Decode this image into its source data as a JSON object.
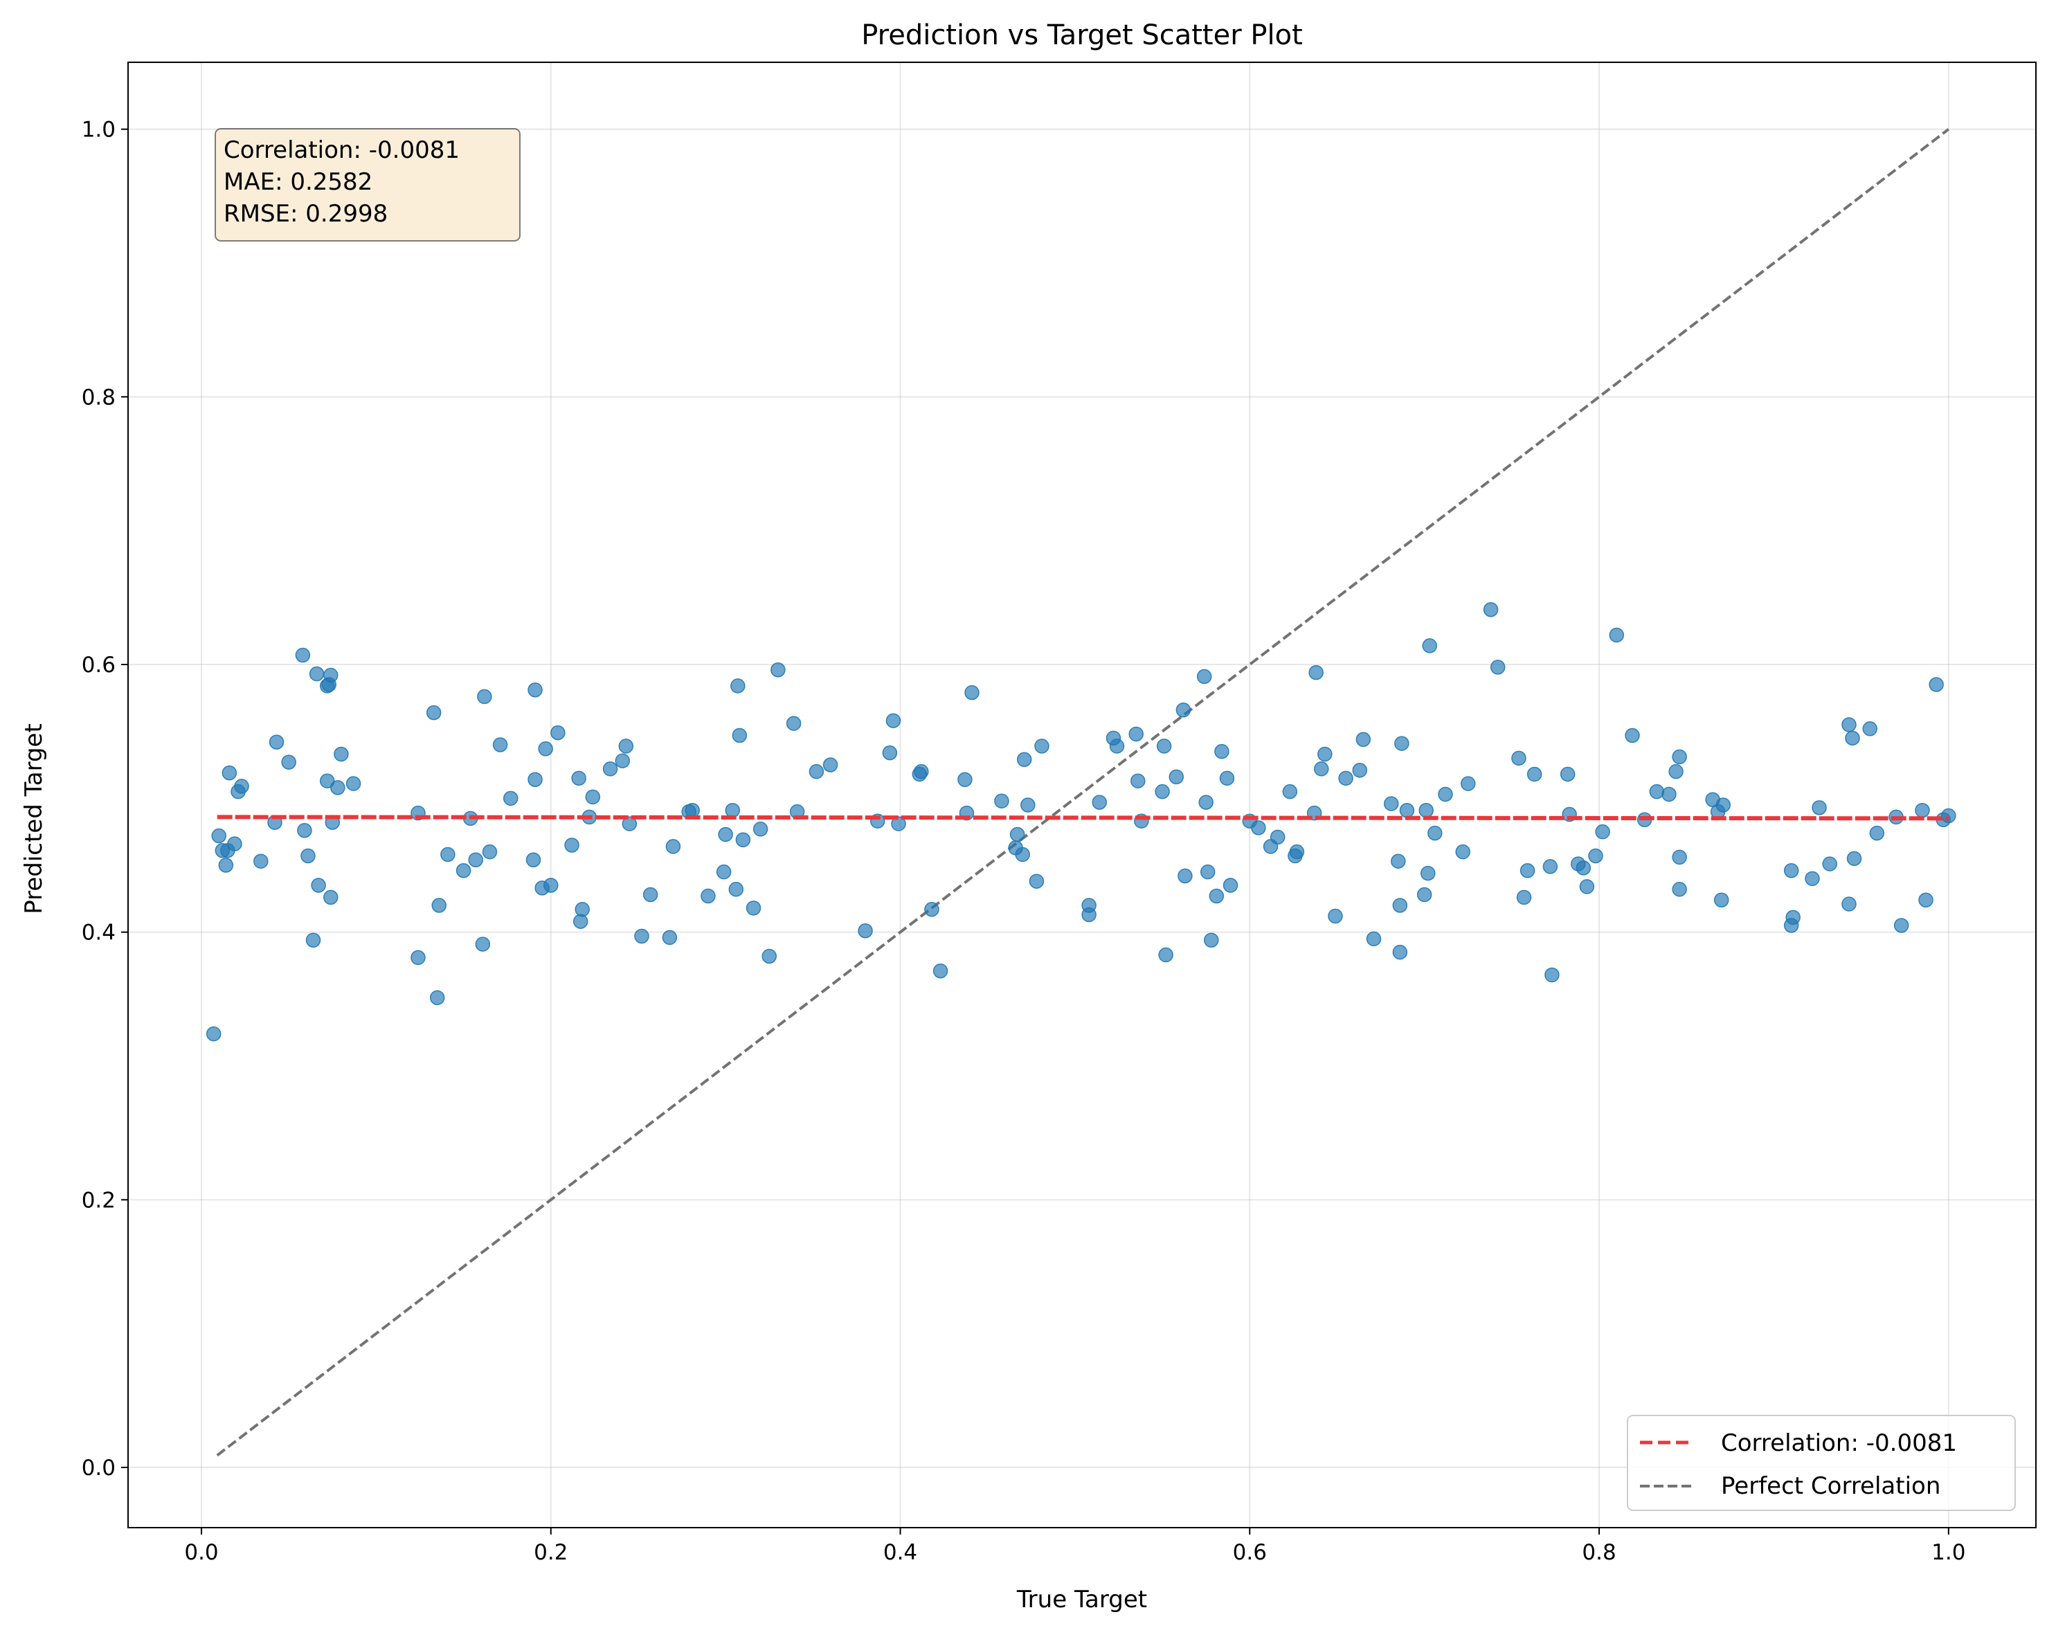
{
  "chart_data": {
    "type": "scatter",
    "title": "Prediction vs Target Scatter Plot",
    "xlabel": "True Target",
    "ylabel": "Predicted Target",
    "xlim": [
      -0.042,
      1.05
    ],
    "ylim": [
      -0.045,
      1.05
    ],
    "xticks": [
      0.0,
      0.2,
      0.4,
      0.6,
      0.8,
      1.0
    ],
    "xtick_labels": [
      "0.0",
      "0.2",
      "0.4",
      "0.6",
      "0.8",
      "1.0"
    ],
    "yticks": [
      0.0,
      0.2,
      0.4,
      0.6,
      0.8,
      1.0
    ],
    "ytick_labels": [
      "0.0",
      "0.2",
      "0.4",
      "0.6",
      "0.8",
      "1.0"
    ],
    "grid": true,
    "legend_position": "lower-right",
    "stats_box": {
      "lines": [
        "Correlation: -0.0081",
        "MAE: 0.2582",
        "RMSE: 0.2998"
      ],
      "position": "top-left"
    },
    "series": [
      {
        "kind": "scatter",
        "color": "#1f77b4",
        "points": [
          [
            0.007,
            0.324
          ],
          [
            0.01,
            0.472
          ],
          [
            0.012,
            0.461
          ],
          [
            0.014,
            0.45
          ],
          [
            0.015,
            0.461
          ],
          [
            0.016,
            0.519
          ],
          [
            0.019,
            0.466
          ],
          [
            0.021,
            0.505
          ],
          [
            0.023,
            0.509
          ],
          [
            0.034,
            0.453
          ],
          [
            0.042,
            0.482
          ],
          [
            0.043,
            0.542
          ],
          [
            0.05,
            0.527
          ],
          [
            0.058,
            0.607
          ],
          [
            0.059,
            0.476
          ],
          [
            0.061,
            0.457
          ],
          [
            0.064,
            0.394
          ],
          [
            0.066,
            0.593
          ],
          [
            0.067,
            0.435
          ],
          [
            0.072,
            0.584
          ],
          [
            0.072,
            0.513
          ],
          [
            0.073,
            0.585
          ],
          [
            0.074,
            0.592
          ],
          [
            0.074,
            0.426
          ],
          [
            0.075,
            0.482
          ],
          [
            0.078,
            0.508
          ],
          [
            0.08,
            0.533
          ],
          [
            0.087,
            0.511
          ],
          [
            0.124,
            0.489
          ],
          [
            0.124,
            0.381
          ],
          [
            0.133,
            0.564
          ],
          [
            0.135,
            0.351
          ],
          [
            0.136,
            0.42
          ],
          [
            0.141,
            0.458
          ],
          [
            0.15,
            0.446
          ],
          [
            0.154,
            0.485
          ],
          [
            0.157,
            0.454
          ],
          [
            0.161,
            0.391
          ],
          [
            0.162,
            0.576
          ],
          [
            0.165,
            0.46
          ],
          [
            0.171,
            0.54
          ],
          [
            0.177,
            0.5
          ],
          [
            0.19,
            0.454
          ],
          [
            0.191,
            0.514
          ],
          [
            0.191,
            0.581
          ],
          [
            0.195,
            0.433
          ],
          [
            0.197,
            0.537
          ],
          [
            0.2,
            0.435
          ],
          [
            0.204,
            0.549
          ],
          [
            0.212,
            0.465
          ],
          [
            0.216,
            0.515
          ],
          [
            0.217,
            0.408
          ],
          [
            0.218,
            0.417
          ],
          [
            0.222,
            0.486
          ],
          [
            0.224,
            0.501
          ],
          [
            0.234,
            0.522
          ],
          [
            0.241,
            0.528
          ],
          [
            0.243,
            0.539
          ],
          [
            0.245,
            0.481
          ],
          [
            0.252,
            0.397
          ],
          [
            0.257,
            0.428
          ],
          [
            0.268,
            0.396
          ],
          [
            0.27,
            0.464
          ],
          [
            0.279,
            0.49
          ],
          [
            0.281,
            0.491
          ],
          [
            0.29,
            0.427
          ],
          [
            0.299,
            0.445
          ],
          [
            0.3,
            0.473
          ],
          [
            0.304,
            0.491
          ],
          [
            0.306,
            0.432
          ],
          [
            0.307,
            0.584
          ],
          [
            0.308,
            0.547
          ],
          [
            0.31,
            0.469
          ],
          [
            0.316,
            0.418
          ],
          [
            0.32,
            0.477
          ],
          [
            0.325,
            0.382
          ],
          [
            0.33,
            0.596
          ],
          [
            0.339,
            0.556
          ],
          [
            0.341,
            0.49
          ],
          [
            0.352,
            0.52
          ],
          [
            0.36,
            0.525
          ],
          [
            0.38,
            0.401
          ],
          [
            0.387,
            0.483
          ],
          [
            0.394,
            0.534
          ],
          [
            0.396,
            0.558
          ],
          [
            0.399,
            0.481
          ],
          [
            0.411,
            0.518
          ],
          [
            0.412,
            0.52
          ],
          [
            0.418,
            0.417
          ],
          [
            0.423,
            0.371
          ],
          [
            0.437,
            0.514
          ],
          [
            0.438,
            0.489
          ],
          [
            0.441,
            0.579
          ],
          [
            0.458,
            0.498
          ],
          [
            0.466,
            0.463
          ],
          [
            0.467,
            0.473
          ],
          [
            0.47,
            0.458
          ],
          [
            0.471,
            0.529
          ],
          [
            0.473,
            0.495
          ],
          [
            0.478,
            0.438
          ],
          [
            0.481,
            0.539
          ],
          [
            0.508,
            0.42
          ],
          [
            0.508,
            0.413
          ],
          [
            0.514,
            0.497
          ],
          [
            0.522,
            0.545
          ],
          [
            0.524,
            0.539
          ],
          [
            0.535,
            0.548
          ],
          [
            0.536,
            0.513
          ],
          [
            0.538,
            0.483
          ],
          [
            0.55,
            0.505
          ],
          [
            0.551,
            0.539
          ],
          [
            0.552,
            0.383
          ],
          [
            0.558,
            0.516
          ],
          [
            0.562,
            0.566
          ],
          [
            0.563,
            0.442
          ],
          [
            0.574,
            0.591
          ],
          [
            0.575,
            0.497
          ],
          [
            0.576,
            0.445
          ],
          [
            0.578,
            0.394
          ],
          [
            0.581,
            0.427
          ],
          [
            0.584,
            0.535
          ],
          [
            0.587,
            0.515
          ],
          [
            0.589,
            0.435
          ],
          [
            0.6,
            0.483
          ],
          [
            0.605,
            0.478
          ],
          [
            0.612,
            0.464
          ],
          [
            0.616,
            0.471
          ],
          [
            0.623,
            0.505
          ],
          [
            0.626,
            0.457
          ],
          [
            0.627,
            0.46
          ],
          [
            0.637,
            0.489
          ],
          [
            0.638,
            0.594
          ],
          [
            0.641,
            0.522
          ],
          [
            0.643,
            0.533
          ],
          [
            0.649,
            0.412
          ],
          [
            0.655,
            0.515
          ],
          [
            0.663,
            0.521
          ],
          [
            0.665,
            0.544
          ],
          [
            0.671,
            0.395
          ],
          [
            0.681,
            0.496
          ],
          [
            0.685,
            0.453
          ],
          [
            0.686,
            0.42
          ],
          [
            0.686,
            0.385
          ],
          [
            0.687,
            0.541
          ],
          [
            0.69,
            0.491
          ],
          [
            0.7,
            0.428
          ],
          [
            0.701,
            0.491
          ],
          [
            0.702,
            0.444
          ],
          [
            0.703,
            0.614
          ],
          [
            0.706,
            0.474
          ],
          [
            0.712,
            0.503
          ],
          [
            0.722,
            0.46
          ],
          [
            0.725,
            0.511
          ],
          [
            0.738,
            0.641
          ],
          [
            0.742,
            0.598
          ],
          [
            0.754,
            0.53
          ],
          [
            0.757,
            0.426
          ],
          [
            0.759,
            0.446
          ],
          [
            0.763,
            0.518
          ],
          [
            0.772,
            0.449
          ],
          [
            0.773,
            0.368
          ],
          [
            0.782,
            0.518
          ],
          [
            0.783,
            0.488
          ],
          [
            0.788,
            0.451
          ],
          [
            0.791,
            0.448
          ],
          [
            0.793,
            0.434
          ],
          [
            0.798,
            0.457
          ],
          [
            0.802,
            0.475
          ],
          [
            0.81,
            0.622
          ],
          [
            0.819,
            0.547
          ],
          [
            0.826,
            0.484
          ],
          [
            0.833,
            0.505
          ],
          [
            0.84,
            0.503
          ],
          [
            0.844,
            0.52
          ],
          [
            0.846,
            0.531
          ],
          [
            0.846,
            0.432
          ],
          [
            0.846,
            0.456
          ],
          [
            0.868,
            0.49
          ],
          [
            0.87,
            0.424
          ],
          [
            0.871,
            0.495
          ],
          [
            0.865,
            0.499
          ],
          [
            0.91,
            0.405
          ],
          [
            0.91,
            0.446
          ],
          [
            0.911,
            0.411
          ],
          [
            0.922,
            0.44
          ],
          [
            0.926,
            0.493
          ],
          [
            0.932,
            0.451
          ],
          [
            0.943,
            0.421
          ],
          [
            0.943,
            0.555
          ],
          [
            0.945,
            0.545
          ],
          [
            0.946,
            0.455
          ],
          [
            0.955,
            0.552
          ],
          [
            0.959,
            0.474
          ],
          [
            0.97,
            0.486
          ],
          [
            0.973,
            0.405
          ],
          [
            0.985,
            0.491
          ],
          [
            0.987,
            0.424
          ],
          [
            0.993,
            0.585
          ],
          [
            0.997,
            0.484
          ],
          [
            1.0,
            0.487
          ]
        ]
      },
      {
        "kind": "line",
        "name": "Correlation: -0.0081",
        "color": "#e8383d",
        "style": "dashed",
        "x": [
          0.009,
          1.0
        ],
        "y": [
          0.486,
          0.485
        ]
      },
      {
        "kind": "line",
        "name": "Perfect Correlation",
        "color": "#737373",
        "style": "dashed",
        "x": [
          0.009,
          1.0
        ],
        "y": [
          0.009,
          1.0
        ]
      }
    ]
  }
}
